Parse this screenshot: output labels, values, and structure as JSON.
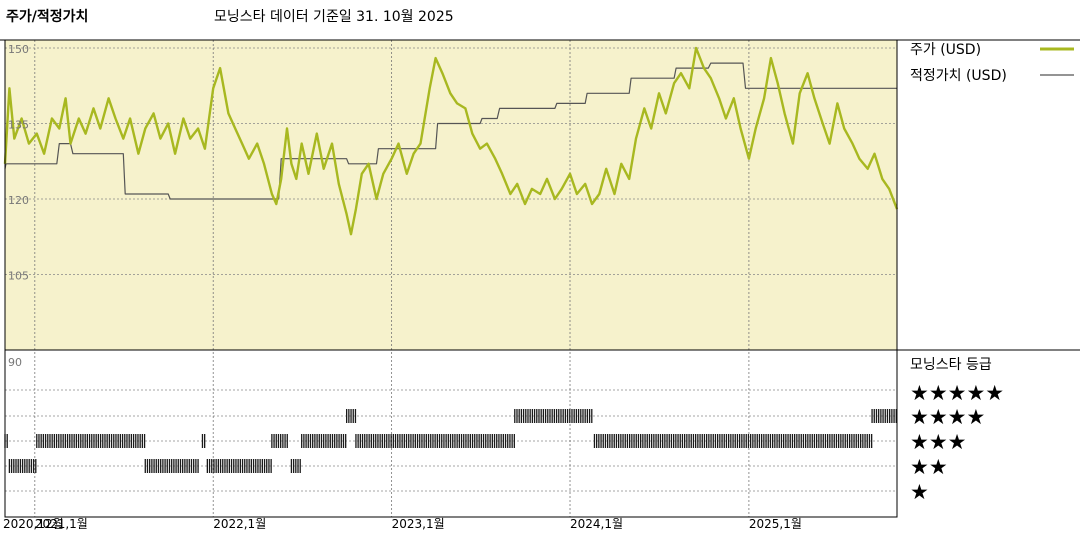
{
  "header": {
    "left_title": "주가/적정가치",
    "center_title": "모닝스타 데이터 기준일 31. 10월 2025"
  },
  "legend": {
    "price_label": "주가 (USD)",
    "fair_value_label": "적정가치 (USD)"
  },
  "rating_panel": {
    "title": "모닝스타 등급",
    "levels": [
      "★★★★★",
      "★★★★",
      "★★★",
      "★★",
      "★"
    ]
  },
  "colors": {
    "price": "#a8b820",
    "fair_value": "#555555",
    "plot_bg": "#f6f2cc",
    "bars": "#1a1a1a"
  },
  "chart_data": {
    "type": "line",
    "y_ticks": [
      150,
      135,
      120,
      105
    ],
    "ylim": [
      90,
      150
    ],
    "rating_axis_tick": "90",
    "x_ticks": [
      {
        "date": "2021-01-01",
        "label": "2021,1월"
      },
      {
        "date": "2022-01-01",
        "label": "2022,1월"
      },
      {
        "date": "2023-01-01",
        "label": "2023,1월"
      },
      {
        "date": "2024-01-01",
        "label": "2024,1월"
      },
      {
        "date": "2025-01-01",
        "label": "2025,1월"
      }
    ],
    "x_first_tick_label": "2020,12월",
    "xlim": [
      "2020-11-01",
      "2025-10-31"
    ],
    "series": [
      {
        "name": "주가 (USD)",
        "points": [
          [
            "2020-11-01",
            127
          ],
          [
            "2020-11-10",
            142
          ],
          [
            "2020-11-20",
            132
          ],
          [
            "2020-12-05",
            136
          ],
          [
            "2020-12-20",
            131
          ],
          [
            "2021-01-05",
            133
          ],
          [
            "2021-01-20",
            129
          ],
          [
            "2021-02-05",
            136
          ],
          [
            "2021-02-20",
            134
          ],
          [
            "2021-03-05",
            140
          ],
          [
            "2021-03-15",
            131
          ],
          [
            "2021-04-01",
            136
          ],
          [
            "2021-04-15",
            133
          ],
          [
            "2021-05-01",
            138
          ],
          [
            "2021-05-15",
            134
          ],
          [
            "2021-06-01",
            140
          ],
          [
            "2021-06-15",
            136
          ],
          [
            "2021-07-01",
            132
          ],
          [
            "2021-07-15",
            136
          ],
          [
            "2021-08-01",
            129
          ],
          [
            "2021-08-15",
            134
          ],
          [
            "2021-09-01",
            137
          ],
          [
            "2021-09-15",
            132
          ],
          [
            "2021-10-01",
            135
          ],
          [
            "2021-10-15",
            129
          ],
          [
            "2021-11-01",
            136
          ],
          [
            "2021-11-15",
            132
          ],
          [
            "2021-12-01",
            134
          ],
          [
            "2021-12-15",
            130
          ],
          [
            "2022-01-01",
            142
          ],
          [
            "2022-01-15",
            146
          ],
          [
            "2022-02-01",
            137
          ],
          [
            "2022-02-15",
            134
          ],
          [
            "2022-03-01",
            131
          ],
          [
            "2022-03-15",
            128
          ],
          [
            "2022-04-01",
            131
          ],
          [
            "2022-04-15",
            127
          ],
          [
            "2022-05-01",
            121
          ],
          [
            "2022-05-10",
            119
          ],
          [
            "2022-05-20",
            124
          ],
          [
            "2022-06-01",
            134
          ],
          [
            "2022-06-10",
            127
          ],
          [
            "2022-06-20",
            124
          ],
          [
            "2022-07-01",
            131
          ],
          [
            "2022-07-15",
            125
          ],
          [
            "2022-08-01",
            133
          ],
          [
            "2022-08-15",
            126
          ],
          [
            "2022-09-01",
            131
          ],
          [
            "2022-09-15",
            123
          ],
          [
            "2022-10-01",
            117
          ],
          [
            "2022-10-10",
            113
          ],
          [
            "2022-10-20",
            118
          ],
          [
            "2022-11-01",
            125
          ],
          [
            "2022-11-15",
            127
          ],
          [
            "2022-12-01",
            120
          ],
          [
            "2022-12-15",
            125
          ],
          [
            "2023-01-01",
            128
          ],
          [
            "2023-01-15",
            131
          ],
          [
            "2023-02-01",
            125
          ],
          [
            "2023-02-15",
            129
          ],
          [
            "2023-03-01",
            131
          ],
          [
            "2023-03-20",
            142
          ],
          [
            "2023-04-01",
            148
          ],
          [
            "2023-04-15",
            145
          ],
          [
            "2023-05-01",
            141
          ],
          [
            "2023-05-15",
            139
          ],
          [
            "2023-06-01",
            138
          ],
          [
            "2023-06-15",
            133
          ],
          [
            "2023-07-01",
            130
          ],
          [
            "2023-07-15",
            131
          ],
          [
            "2023-08-01",
            128
          ],
          [
            "2023-08-15",
            125
          ],
          [
            "2023-09-01",
            121
          ],
          [
            "2023-09-15",
            123
          ],
          [
            "2023-10-01",
            119
          ],
          [
            "2023-10-15",
            122
          ],
          [
            "2023-11-01",
            121
          ],
          [
            "2023-11-15",
            124
          ],
          [
            "2023-12-01",
            120
          ],
          [
            "2023-12-15",
            122
          ],
          [
            "2024-01-01",
            125
          ],
          [
            "2024-01-15",
            121
          ],
          [
            "2024-02-01",
            123
          ],
          [
            "2024-02-15",
            119
          ],
          [
            "2024-03-01",
            121
          ],
          [
            "2024-03-15",
            126
          ],
          [
            "2024-04-01",
            121
          ],
          [
            "2024-04-15",
            127
          ],
          [
            "2024-05-01",
            124
          ],
          [
            "2024-05-15",
            132
          ],
          [
            "2024-06-01",
            138
          ],
          [
            "2024-06-15",
            134
          ],
          [
            "2024-07-01",
            141
          ],
          [
            "2024-07-15",
            137
          ],
          [
            "2024-08-01",
            143
          ],
          [
            "2024-08-15",
            145
          ],
          [
            "2024-09-01",
            142
          ],
          [
            "2024-09-15",
            150
          ],
          [
            "2024-10-01",
            146
          ],
          [
            "2024-10-15",
            144
          ],
          [
            "2024-11-01",
            140
          ],
          [
            "2024-11-15",
            136
          ],
          [
            "2024-12-01",
            140
          ],
          [
            "2024-12-15",
            134
          ],
          [
            "2025-01-01",
            128
          ],
          [
            "2025-01-15",
            134
          ],
          [
            "2025-02-01",
            140
          ],
          [
            "2025-02-15",
            148
          ],
          [
            "2025-03-01",
            143
          ],
          [
            "2025-03-15",
            137
          ],
          [
            "2025-04-01",
            131
          ],
          [
            "2025-04-15",
            141
          ],
          [
            "2025-05-01",
            145
          ],
          [
            "2025-05-15",
            140
          ],
          [
            "2025-06-01",
            135
          ],
          [
            "2025-06-15",
            131
          ],
          [
            "2025-07-01",
            139
          ],
          [
            "2025-07-15",
            134
          ],
          [
            "2025-08-01",
            131
          ],
          [
            "2025-08-15",
            128
          ],
          [
            "2025-09-01",
            126
          ],
          [
            "2025-09-15",
            129
          ],
          [
            "2025-10-01",
            124
          ],
          [
            "2025-10-15",
            122
          ],
          [
            "2025-10-31",
            118
          ]
        ]
      },
      {
        "name": "적정가치 (USD)",
        "points": [
          [
            "2020-11-01",
            126
          ],
          [
            "2020-11-03",
            127
          ],
          [
            "2021-02-15",
            127
          ],
          [
            "2021-02-20",
            131
          ],
          [
            "2021-03-15",
            131
          ],
          [
            "2021-03-20",
            129
          ],
          [
            "2021-07-01",
            129
          ],
          [
            "2021-07-05",
            121
          ],
          [
            "2021-10-01",
            121
          ],
          [
            "2021-10-05",
            120
          ],
          [
            "2022-05-15",
            120
          ],
          [
            "2022-05-20",
            128
          ],
          [
            "2022-10-01",
            128
          ],
          [
            "2022-10-05",
            127
          ],
          [
            "2022-12-01",
            127
          ],
          [
            "2022-12-05",
            130
          ],
          [
            "2023-04-01",
            130
          ],
          [
            "2023-04-05",
            135
          ],
          [
            "2023-07-01",
            135
          ],
          [
            "2023-07-05",
            136
          ],
          [
            "2023-08-05",
            136
          ],
          [
            "2023-08-10",
            138
          ],
          [
            "2023-12-01",
            138
          ],
          [
            "2023-12-05",
            139
          ],
          [
            "2024-02-01",
            139
          ],
          [
            "2024-02-05",
            141
          ],
          [
            "2024-05-01",
            141
          ],
          [
            "2024-05-05",
            144
          ],
          [
            "2024-08-01",
            144
          ],
          [
            "2024-08-05",
            146
          ],
          [
            "2024-10-10",
            146
          ],
          [
            "2024-10-15",
            147
          ],
          [
            "2024-12-20",
            147
          ],
          [
            "2024-12-25",
            142
          ],
          [
            "2025-10-31",
            142
          ]
        ]
      }
    ],
    "rating_segments": [
      {
        "stars": 3,
        "from": "2020-11-01",
        "to": "2020-11-08"
      },
      {
        "stars": 2,
        "from": "2020-11-10",
        "to": "2021-01-05"
      },
      {
        "stars": 3,
        "from": "2021-01-05",
        "to": "2021-08-15"
      },
      {
        "stars": 2,
        "from": "2021-08-15",
        "to": "2021-12-05"
      },
      {
        "stars": 3,
        "from": "2021-12-10",
        "to": "2021-12-16"
      },
      {
        "stars": 2,
        "from": "2021-12-20",
        "to": "2022-05-01"
      },
      {
        "stars": 3,
        "from": "2022-05-01",
        "to": "2022-06-05"
      },
      {
        "stars": 2,
        "from": "2022-06-10",
        "to": "2022-07-01"
      },
      {
        "stars": 3,
        "from": "2022-07-01",
        "to": "2022-10-01"
      },
      {
        "stars": 4,
        "from": "2022-10-01",
        "to": "2022-10-20"
      },
      {
        "stars": 3,
        "from": "2022-10-20",
        "to": "2023-09-10"
      },
      {
        "stars": 4,
        "from": "2023-09-10",
        "to": "2024-02-15"
      },
      {
        "stars": 3,
        "from": "2024-02-20",
        "to": "2025-09-10"
      },
      {
        "stars": 4,
        "from": "2025-09-10",
        "to": "2025-10-31"
      }
    ]
  }
}
